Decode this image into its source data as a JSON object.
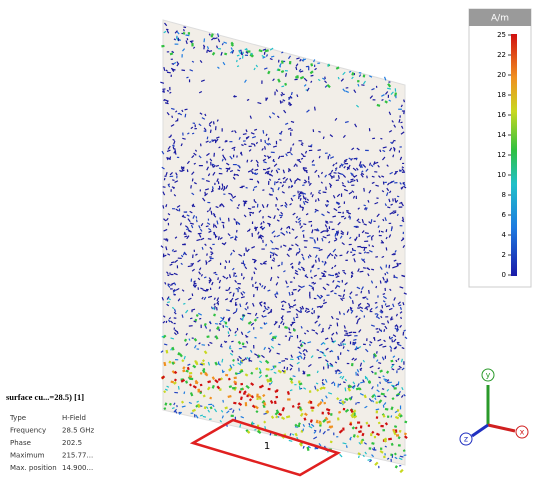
{
  "colorbar": {
    "unit": "A/m",
    "ticks": [
      "25",
      "22",
      "20",
      "18",
      "16",
      "14",
      "12",
      "10",
      "8",
      "6",
      "4",
      "2",
      "0"
    ]
  },
  "info": {
    "title": "surface cu...=28.5) [1]",
    "rows": [
      [
        "Type",
        "H-Field"
      ],
      [
        "Frequency",
        "28.5 GHz"
      ],
      [
        "Phase",
        "202.5"
      ],
      [
        "Maximum",
        "215.77..."
      ],
      [
        "Max. position",
        "14.900..."
      ]
    ]
  },
  "port": {
    "label": "1"
  },
  "axes": {
    "y": "y",
    "x": "x",
    "z": "z"
  }
}
